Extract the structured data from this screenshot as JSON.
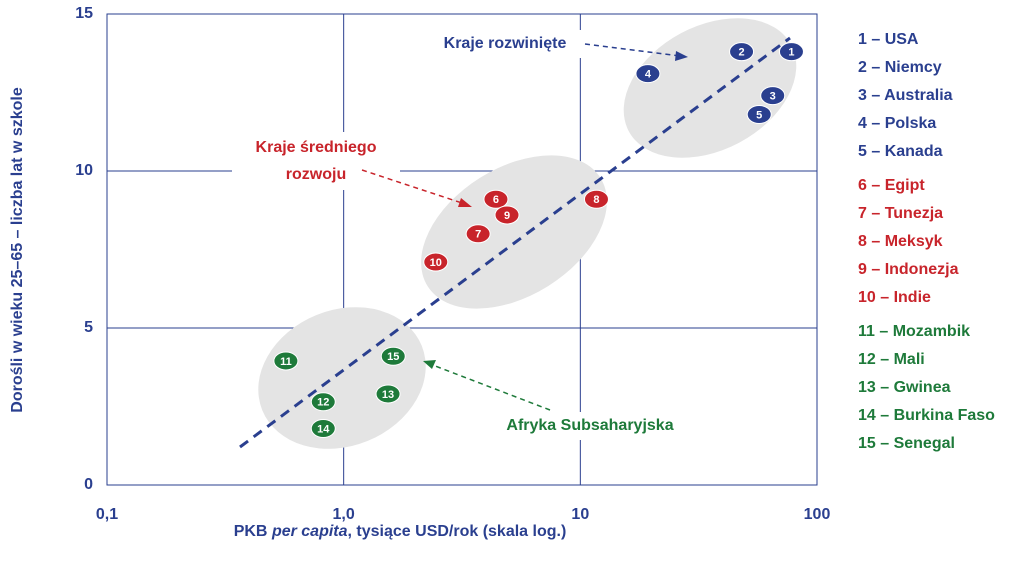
{
  "chart_data": {
    "type": "scatter",
    "log_x": true,
    "grid": true,
    "xlabel_parts": [
      "PKB ",
      "per capita",
      ", tysiące USD/rok (skala log.)"
    ],
    "ylabel": "Dorośli w wieku 25–65 – liczba lat w szkole",
    "xlim": [
      0.1,
      100
    ],
    "ylim": [
      0,
      15
    ],
    "xticks": [
      {
        "value": 0.1,
        "label": "0,1"
      },
      {
        "value": 1,
        "label": "1,0"
      },
      10,
      100
    ],
    "yticks": [
      0,
      5,
      10,
      15
    ],
    "annotations": [
      {
        "text": [
          "Kraje rozwinięte"
        ],
        "color": "#2a3f8f"
      },
      {
        "text": [
          "Kraje średniego",
          "rozwoju"
        ],
        "color": "#c8242b"
      },
      {
        "text": [
          "Afryka Subsaharyjska"
        ],
        "color": "#1e7a3a"
      }
    ],
    "series": [
      {
        "name": "1 – USA",
        "label": "1",
        "color": "#2a3f8f",
        "x": [
          78
        ],
        "values": [
          13.8
        ]
      },
      {
        "name": "2 – Niemcy",
        "label": "2",
        "color": "#2a3f8f",
        "x": [
          48
        ],
        "values": [
          13.8
        ]
      },
      {
        "name": "3 – Australia",
        "label": "3",
        "color": "#2a3f8f",
        "x": [
          65
        ],
        "values": [
          12.4
        ]
      },
      {
        "name": "4 – Polska",
        "label": "4",
        "color": "#2a3f8f",
        "x": [
          19.3
        ],
        "values": [
          13.1
        ]
      },
      {
        "name": "5 – Kanada",
        "label": "5",
        "color": "#2a3f8f",
        "x": [
          57
        ],
        "values": [
          11.8
        ]
      },
      {
        "name": "6 – Egipt",
        "label": "6",
        "color": "#c8242b",
        "x": [
          4.4
        ],
        "values": [
          9.1
        ]
      },
      {
        "name": "7 – Tunezja",
        "label": "7",
        "color": "#c8242b",
        "x": [
          3.7
        ],
        "values": [
          8.0
        ]
      },
      {
        "name": "8 – Meksyk",
        "label": "8",
        "color": "#c8242b",
        "x": [
          11.7
        ],
        "values": [
          9.1
        ]
      },
      {
        "name": "9 – Indonezja",
        "label": "9",
        "color": "#c8242b",
        "x": [
          4.9
        ],
        "values": [
          8.6
        ]
      },
      {
        "name": "10 – Indie",
        "label": "10",
        "color": "#c8242b",
        "x": [
          2.45
        ],
        "values": [
          7.1
        ]
      },
      {
        "name": "11 – Mozambik",
        "label": "11",
        "color": "#1e7a3a",
        "x": [
          0.57
        ],
        "values": [
          3.95
        ]
      },
      {
        "name": "12 – Mali",
        "label": "12",
        "color": "#1e7a3a",
        "x": [
          0.82
        ],
        "values": [
          2.65
        ]
      },
      {
        "name": "13 – Gwinea",
        "label": "13",
        "color": "#1e7a3a",
        "x": [
          1.54
        ],
        "values": [
          2.9
        ]
      },
      {
        "name": "14 – Burkina Faso",
        "label": "14",
        "color": "#1e7a3a",
        "x": [
          0.82
        ],
        "values": [
          1.8
        ]
      },
      {
        "name": "15 – Senegal",
        "label": "15",
        "color": "#1e7a3a",
        "x": [
          1.62
        ],
        "values": [
          4.1
        ]
      }
    ]
  }
}
